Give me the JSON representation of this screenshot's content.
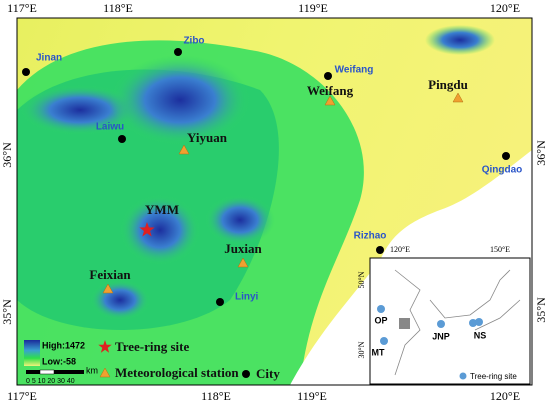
{
  "map": {
    "axes": {
      "top": [
        "117°E",
        "118°E",
        "119°E",
        "120°E"
      ],
      "bottom": [
        "117°E",
        "118°E",
        "119°E",
        "120°E"
      ],
      "left": [
        "36°N",
        "35°N"
      ],
      "right": [
        "36°N",
        "35°N"
      ]
    },
    "cities": [
      "Jinan",
      "Zibo",
      "Weifang",
      "Laiwu",
      "Qingdao",
      "Rizhao",
      "Linyi"
    ],
    "stations": [
      "Weifang",
      "Pingdu",
      "Yiyuan",
      "Juxian",
      "Feixian"
    ],
    "tree_ring_site": "YMM",
    "legend": {
      "elevation_high": "High:1472",
      "elevation_low": "Low:-58",
      "tree_ring": "Tree-ring site",
      "station": "Meteorological station",
      "city": "City",
      "scale_ticks": "0 5 10 20 30 40",
      "scale_unit": "km"
    },
    "inset": {
      "axes": {
        "top": [
          "120°E",
          "150°E"
        ],
        "left": [
          "50°N",
          "30°N"
        ]
      },
      "sites": [
        "OP",
        "MT",
        "JNP",
        "NS"
      ],
      "legend": "Tree-ring site"
    }
  }
}
